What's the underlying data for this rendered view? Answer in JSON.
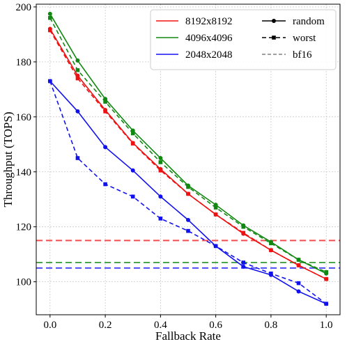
{
  "chart_data": {
    "type": "line",
    "title": "",
    "xlabel": "Fallback Rate",
    "ylabel": "Throughput (TOPS)",
    "xlim": [
      -0.05,
      1.05
    ],
    "ylim": [
      88,
      201
    ],
    "xticks": [
      "0.0",
      "0.2",
      "0.4",
      "0.6",
      "0.8",
      "1.0"
    ],
    "yticks": [
      "100",
      "120",
      "140",
      "160",
      "180",
      "200"
    ],
    "grid": true,
    "legend_placement": "top-right",
    "x": [
      0.0,
      0.1,
      0.2,
      0.3,
      0.4,
      0.5,
      0.6,
      0.7,
      0.8,
      0.9,
      1.0
    ],
    "series": [
      {
        "name": "8192x8192",
        "style": "random",
        "color": "#ee1111",
        "values": [
          192,
          175,
          162.5,
          150.5,
          141,
          132,
          124.5,
          117.5,
          111.5,
          106,
          101
        ]
      },
      {
        "name": "8192x8192",
        "style": "worst",
        "color": "#ee1111",
        "values": [
          191.5,
          174,
          162,
          150.3,
          140.5,
          132,
          124.5,
          117.8,
          111.5,
          106,
          101
        ]
      },
      {
        "name": "4096x4096",
        "style": "random",
        "color": "#118811",
        "values": [
          197.5,
          180.5,
          166.5,
          155,
          145,
          135,
          128,
          120.5,
          114.5,
          108,
          103
        ]
      },
      {
        "name": "4096x4096",
        "style": "worst",
        "color": "#118811",
        "values": [
          196,
          177,
          165.5,
          154,
          143.5,
          134.5,
          127,
          120,
          114,
          108,
          103.5
        ]
      },
      {
        "name": "2048x2048",
        "style": "random",
        "color": "#1111ee",
        "values": [
          173,
          162,
          149,
          140.5,
          131,
          122.5,
          113,
          105.5,
          102.5,
          96.5,
          92
        ]
      },
      {
        "name": "2048x2048",
        "style": "worst",
        "color": "#1111ee",
        "values": [
          173,
          145,
          135.5,
          131,
          123,
          118.5,
          113,
          107,
          103,
          99.5,
          92
        ]
      }
    ],
    "bf16_baselines": [
      {
        "series": "8192x8192",
        "color": "#ee1111",
        "value": 115
      },
      {
        "series": "4096x4096",
        "color": "#118811",
        "value": 107
      },
      {
        "series": "2048x2048",
        "color": "#1111ee",
        "value": 105
      }
    ],
    "legend": {
      "colors": [
        {
          "label": "8192x8192",
          "color": "#ee1111"
        },
        {
          "label": "4096x4096",
          "color": "#118811"
        },
        {
          "label": "2048x2048",
          "color": "#1111ee"
        }
      ],
      "styles": [
        {
          "label": "random",
          "line": "solid",
          "marker": "circle"
        },
        {
          "label": "worst",
          "line": "dashed",
          "marker": "square"
        },
        {
          "label": "bf16",
          "line": "dashed-gray",
          "marker": "none"
        }
      ]
    }
  }
}
